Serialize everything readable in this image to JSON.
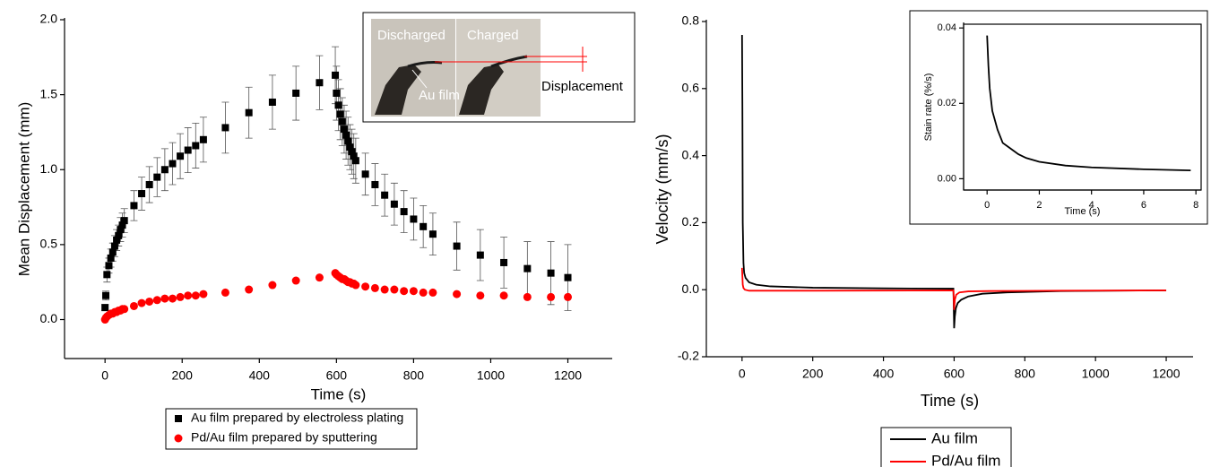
{
  "chart_data": [
    {
      "type": "scatter",
      "x_label": "Time (s)",
      "y_label": "Mean Displacement (mm)",
      "xlim": [
        -105,
        1315
      ],
      "xticks": [
        0,
        200,
        400,
        600,
        800,
        1000,
        1200
      ],
      "ylim": [
        -0.26,
        2.0
      ],
      "yticks": [
        {
          "value": 0,
          "label": "0.0"
        },
        0.5,
        {
          "value": 1,
          "label": "1.0"
        },
        1.5,
        {
          "value": 2,
          "label": "2.0"
        }
      ],
      "x": [
        0,
        2,
        5,
        10,
        15,
        20,
        25,
        30,
        35,
        40,
        45,
        50,
        75,
        95,
        115,
        135,
        155,
        175,
        195,
        215,
        235,
        255,
        312,
        373,
        434,
        495,
        556,
        597,
        600,
        605,
        610,
        615,
        620,
        625,
        630,
        635,
        640,
        645,
        650,
        675,
        700,
        725,
        750,
        775,
        800,
        825,
        850,
        912,
        973,
        1034,
        1095,
        1156,
        1200
      ],
      "series": [
        {
          "name": "Au film prepared by electroless plating",
          "color": "#000000",
          "marker": "square",
          "values": [
            0.08,
            0.16,
            0.3,
            0.36,
            0.41,
            0.45,
            0.49,
            0.53,
            0.56,
            0.6,
            0.63,
            0.66,
            0.76,
            0.84,
            0.9,
            0.95,
            1.0,
            1.04,
            1.09,
            1.13,
            1.16,
            1.2,
            1.28,
            1.38,
            1.45,
            1.51,
            1.58,
            1.63,
            1.51,
            1.43,
            1.37,
            1.32,
            1.27,
            1.23,
            1.19,
            1.15,
            1.12,
            1.09,
            1.06,
            0.97,
            0.9,
            0.83,
            0.77,
            0.72,
            0.67,
            0.62,
            0.57,
            0.49,
            0.43,
            0.38,
            0.34,
            0.31,
            0.28
          ],
          "errors": [
            0.02,
            0.03,
            0.05,
            0.05,
            0.06,
            0.06,
            0.07,
            0.07,
            0.07,
            0.08,
            0.08,
            0.08,
            0.1,
            0.11,
            0.12,
            0.13,
            0.14,
            0.14,
            0.15,
            0.15,
            0.15,
            0.15,
            0.17,
            0.17,
            0.18,
            0.18,
            0.18,
            0.19,
            0.18,
            0.17,
            0.17,
            0.16,
            0.16,
            0.16,
            0.16,
            0.15,
            0.15,
            0.15,
            0.15,
            0.14,
            0.14,
            0.14,
            0.14,
            0.14,
            0.14,
            0.14,
            0.14,
            0.16,
            0.17,
            0.17,
            0.18,
            0.21,
            0.22
          ]
        },
        {
          "name": "Pd/Au film prepared by sputtering",
          "color": "#ff0000",
          "marker": "circle",
          "values": [
            0.0,
            0.01,
            0.02,
            0.03,
            0.04,
            0.04,
            0.05,
            0.05,
            0.06,
            0.06,
            0.07,
            0.07,
            0.09,
            0.11,
            0.12,
            0.13,
            0.14,
            0.14,
            0.15,
            0.16,
            0.16,
            0.17,
            0.18,
            0.2,
            0.23,
            0.26,
            0.28,
            0.31,
            0.3,
            0.29,
            0.28,
            0.27,
            0.27,
            0.26,
            0.25,
            0.25,
            0.24,
            0.24,
            0.23,
            0.22,
            0.21,
            0.2,
            0.2,
            0.19,
            0.19,
            0.18,
            0.18,
            0.17,
            0.16,
            0.16,
            0.15,
            0.15,
            0.15
          ]
        }
      ],
      "annotations": [
        "Discharged",
        "Charged",
        "Au film",
        "Displacement"
      ]
    },
    {
      "type": "line",
      "x_label": "Time (s)",
      "y_label": "Velocity (mm/s)",
      "xlim": [
        -101,
        1276
      ],
      "xticks": [
        0,
        200,
        400,
        600,
        800,
        1000,
        1200
      ],
      "ylim": [
        -0.2,
        0.8
      ],
      "yticks": [
        -0.2,
        {
          "value": 0,
          "label": "0.0"
        },
        0.2,
        0.4,
        0.6,
        0.8
      ],
      "series": [
        {
          "name": "Au film",
          "color": "#000000",
          "x": [
            0,
            1,
            2,
            4,
            6,
            10,
            20,
            40,
            80,
            200,
            400,
            598,
            600,
            602,
            605,
            610,
            620,
            640,
            680,
            750,
            900,
            1200
          ],
          "values": [
            0.76,
            0.55,
            0.2,
            0.08,
            0.05,
            0.035,
            0.022,
            0.015,
            0.01,
            0.006,
            0.004,
            0.003,
            -0.115,
            -0.08,
            -0.055,
            -0.04,
            -0.03,
            -0.02,
            -0.012,
            -0.008,
            -0.004,
            -0.002
          ]
        },
        {
          "name": "Pd/Au film",
          "color": "#ff0000",
          "x": [
            0,
            1,
            2,
            4,
            8,
            20,
            200,
            598,
            600,
            602,
            606,
            615,
            640,
            700,
            900,
            1200
          ],
          "values": [
            0.065,
            0.04,
            0.015,
            0.005,
            0.0,
            -0.003,
            -0.003,
            -0.002,
            -0.06,
            -0.03,
            -0.015,
            -0.008,
            -0.005,
            -0.004,
            -0.003,
            -0.002
          ]
        }
      ]
    },
    {
      "type": "line",
      "x_label": "Time (s)",
      "y_label": "Stain rate (%/s)",
      "xlim": [
        -0.9,
        8.2
      ],
      "xticks": [
        0,
        2,
        4,
        6,
        8
      ],
      "ylim": [
        -0.003,
        0.041
      ],
      "yticks": [
        {
          "value": 0,
          "label": "0.00"
        },
        0.02,
        0.04
      ],
      "series": [
        {
          "color": "#000000",
          "x": [
            0,
            0.05,
            0.1,
            0.2,
            0.4,
            0.6,
            0.8,
            1,
            1.2,
            1.5,
            2,
            3,
            4,
            6,
            7.8
          ],
          "values": [
            0.038,
            0.03,
            0.024,
            0.018,
            0.013,
            0.0095,
            0.0085,
            0.0075,
            0.0065,
            0.0055,
            0.0045,
            0.0035,
            0.003,
            0.0025,
            0.0022
          ]
        }
      ]
    }
  ]
}
